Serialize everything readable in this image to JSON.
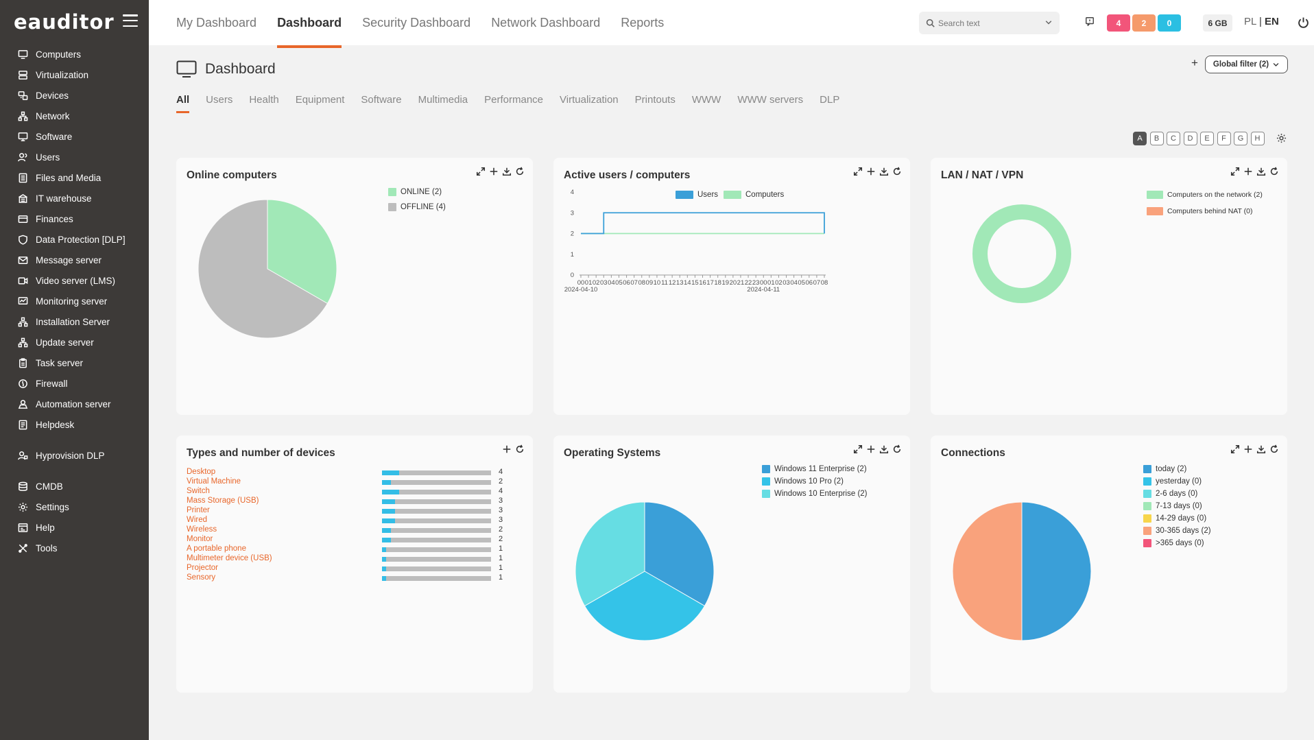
{
  "app": {
    "logo": "eauditor"
  },
  "sidebar": {
    "items": [
      {
        "label": "Computers",
        "icon": "monitor-icon"
      },
      {
        "label": "Virtualization",
        "icon": "server-icon"
      },
      {
        "label": "Devices",
        "icon": "devices-icon"
      },
      {
        "label": "Network",
        "icon": "network-icon"
      },
      {
        "label": "Software",
        "icon": "software-icon"
      },
      {
        "label": "Users",
        "icon": "users-icon"
      },
      {
        "label": "Files and Media",
        "icon": "files-icon"
      },
      {
        "label": "IT warehouse",
        "icon": "warehouse-icon"
      },
      {
        "label": "Finances",
        "icon": "card-icon"
      },
      {
        "label": "Data Protection [DLP]",
        "icon": "shield-icon"
      },
      {
        "label": "Message server",
        "icon": "mail-icon"
      },
      {
        "label": "Video server (LMS)",
        "icon": "video-icon"
      },
      {
        "label": "Monitoring server",
        "icon": "monitoring-icon"
      },
      {
        "label": "Installation Server",
        "icon": "installation-icon"
      },
      {
        "label": "Update server",
        "icon": "update-icon"
      },
      {
        "label": "Task server",
        "icon": "clipboard-icon"
      },
      {
        "label": "Firewall",
        "icon": "firewall-icon"
      },
      {
        "label": "Automation server",
        "icon": "automation-icon"
      },
      {
        "label": "Helpdesk",
        "icon": "helpdesk-icon"
      }
    ],
    "extra": [
      {
        "label": "Hyprovision DLP",
        "icon": "hyprovision-icon"
      }
    ],
    "bottom": [
      {
        "label": "CMDB",
        "icon": "database-icon"
      },
      {
        "label": "Settings",
        "icon": "gear-icon"
      },
      {
        "label": "Help",
        "icon": "help-icon"
      },
      {
        "label": "Tools",
        "icon": "tools-icon"
      }
    ]
  },
  "header": {
    "tabs": [
      "My Dashboard",
      "Dashboard",
      "Security Dashboard",
      "Network Dashboard",
      "Reports"
    ],
    "active_tab": "Dashboard",
    "search_placeholder": "Search text",
    "badges": [
      {
        "value": "4",
        "color": "#f2557a"
      },
      {
        "value": "2",
        "color": "#f59a6b"
      },
      {
        "value": "0",
        "color": "#2bbfe2"
      }
    ],
    "memory": "6 GB",
    "lang_pl": "PL",
    "lang_sep": "|",
    "lang_en": "EN"
  },
  "page": {
    "title": "Dashboard",
    "plus": "+",
    "global_filter": "Global filter (2)",
    "subtabs": [
      "All",
      "Users",
      "Health",
      "Equipment",
      "Software",
      "Multimedia",
      "Performance",
      "Virtualization",
      "Printouts",
      "WWW",
      "WWW servers",
      "DLP"
    ],
    "active_subtab": "All",
    "letters": [
      "A",
      "B",
      "C",
      "D",
      "E",
      "F",
      "G",
      "H"
    ],
    "active_letter": "A"
  },
  "cards": {
    "online": {
      "title": "Online computers",
      "legend": [
        {
          "label": "ONLINE (2)",
          "color": "#a1e8b7"
        },
        {
          "label": "OFFLINE (4)",
          "color": "#bdbdbd"
        }
      ]
    },
    "active": {
      "title": "Active users / computers",
      "legend": [
        {
          "label": "Users",
          "color": "#3a9fd8"
        },
        {
          "label": "Computers",
          "color": "#a1e8b7"
        }
      ]
    },
    "lan": {
      "title": "LAN / NAT / VPN",
      "legend": [
        {
          "label": "Computers on the network (2)",
          "color": "#a1e8b7"
        },
        {
          "label": "Computers behind NAT (0)",
          "color": "#f9a27c"
        }
      ]
    },
    "devices": {
      "title": "Types and number of devices",
      "rows": [
        {
          "label": "Desktop",
          "value": "4"
        },
        {
          "label": "Virtual Machine",
          "value": "2"
        },
        {
          "label": "Switch",
          "value": "4"
        },
        {
          "label": "Mass Storage (USB)",
          "value": "3"
        },
        {
          "label": "Printer",
          "value": "3"
        },
        {
          "label": "Wired",
          "value": "3"
        },
        {
          "label": "Wireless",
          "value": "2"
        },
        {
          "label": "Monitor",
          "value": "2"
        },
        {
          "label": "A portable phone",
          "value": "1"
        },
        {
          "label": "Multimeter device (USB)",
          "value": "1"
        },
        {
          "label": "Projector",
          "value": "1"
        },
        {
          "label": "Sensory",
          "value": "1"
        }
      ]
    },
    "os": {
      "title": "Operating Systems",
      "legend": [
        {
          "label": "Windows 11 Enterprise (2)",
          "color": "#3a9fd8"
        },
        {
          "label": "Windows 10 Pro (2)",
          "color": "#34c3e8"
        },
        {
          "label": "Windows 10 Enterprise (2)",
          "color": "#66dde3"
        }
      ]
    },
    "connections": {
      "title": "Connections",
      "legend": [
        {
          "label": "today (2)",
          "color": "#3a9fd8"
        },
        {
          "label": "yesterday (0)",
          "color": "#34c3e8"
        },
        {
          "label": "2-6 days (0)",
          "color": "#66dde3"
        },
        {
          "label": "7-13 days (0)",
          "color": "#a1e8b7"
        },
        {
          "label": "14-29 days (0)",
          "color": "#f7d54b"
        },
        {
          "label": "30-365 days (2)",
          "color": "#f9a27c"
        },
        {
          ">365 days (0)": "",
          "label": ">365 days (0)",
          "color": "#f2557a"
        }
      ]
    }
  },
  "chart_data": [
    {
      "type": "pie",
      "title": "Online computers",
      "categories": [
        "ONLINE (2)",
        "OFFLINE (4)"
      ],
      "values": [
        2,
        4
      ]
    },
    {
      "type": "line",
      "title": "Active users / computers",
      "x": [
        "00",
        "01",
        "02",
        "03",
        "04",
        "05",
        "06",
        "07",
        "08",
        "09",
        "10",
        "11",
        "12",
        "13",
        "14",
        "15",
        "16",
        "17",
        "18",
        "19",
        "20",
        "21",
        "22",
        "23",
        "00",
        "01",
        "02",
        "03",
        "04",
        "05",
        "06",
        "07",
        "08"
      ],
      "x_dates": [
        "2024-04-10",
        "2024-04-11"
      ],
      "series": [
        {
          "name": "Users",
          "values": [
            2,
            2,
            2,
            3,
            3,
            3,
            3,
            3,
            3,
            3,
            3,
            3,
            3,
            3,
            3,
            3,
            3,
            3,
            3,
            3,
            3,
            3,
            3,
            3,
            3,
            3,
            3,
            3,
            3,
            3,
            3,
            3,
            2
          ]
        },
        {
          "name": "Computers",
          "values": [
            2,
            2,
            2,
            2,
            2,
            2,
            2,
            2,
            2,
            2,
            2,
            2,
            2,
            2,
            2,
            2,
            2,
            2,
            2,
            2,
            2,
            2,
            2,
            2,
            2,
            2,
            2,
            2,
            2,
            2,
            2,
            2,
            2
          ]
        }
      ],
      "yticks": [
        "0",
        "1",
        "2",
        "3",
        "4"
      ],
      "ylim": [
        0,
        4
      ]
    },
    {
      "type": "pie",
      "title": "LAN / NAT / VPN",
      "categories": [
        "Computers on the network (2)",
        "Computers behind NAT (0)"
      ],
      "values": [
        2,
        0
      ]
    },
    {
      "type": "bar",
      "title": "Types and number of devices",
      "categories": [
        "Desktop",
        "Virtual Machine",
        "Switch",
        "Mass Storage (USB)",
        "Printer",
        "Wired",
        "Wireless",
        "Monitor",
        "A portable phone",
        "Multimeter device (USB)",
        "Projector",
        "Sensory"
      ],
      "values": [
        4,
        2,
        4,
        3,
        3,
        3,
        2,
        2,
        1,
        1,
        1,
        1
      ]
    },
    {
      "type": "pie",
      "title": "Operating Systems",
      "categories": [
        "Windows 11 Enterprise (2)",
        "Windows 10 Pro (2)",
        "Windows 10 Enterprise (2)"
      ],
      "values": [
        2,
        2,
        2
      ]
    },
    {
      "type": "pie",
      "title": "Connections",
      "categories": [
        "today (2)",
        "yesterday (0)",
        "2-6 days (0)",
        "7-13 days (0)",
        "14-29 days (0)",
        "30-365 days (2)",
        ">365 days (0)"
      ],
      "values": [
        2,
        0,
        0,
        0,
        0,
        2,
        0
      ]
    }
  ]
}
